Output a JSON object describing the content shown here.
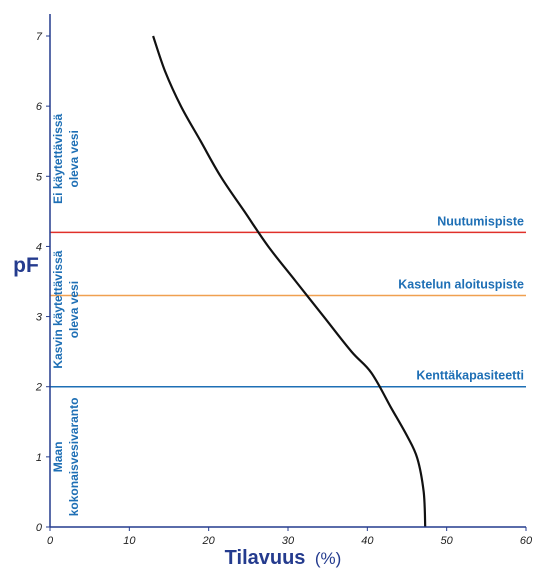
{
  "chart_data": {
    "type": "line",
    "title": "",
    "ylabel": "pF",
    "xlabel": "Tilavuus",
    "xlabel_unit": "(%)",
    "xlim": [
      0,
      60
    ],
    "ylim": [
      0,
      7
    ],
    "x_ticks": [
      "0",
      "10",
      "20",
      "30",
      "40",
      "50",
      "60"
    ],
    "y_ticks": [
      "0",
      "1",
      "2",
      "3",
      "4",
      "5",
      "6",
      "7"
    ],
    "grid": false,
    "series": [
      {
        "x": [
          13,
          14.5,
          16.5,
          19,
          21.5,
          24.5,
          27.5,
          31,
          34.5,
          38,
          40.5,
          43,
          45,
          46.3,
          47.1,
          47.3
        ],
        "y": [
          7.0,
          6.5,
          6.0,
          5.5,
          5.0,
          4.5,
          4.0,
          3.5,
          3.0,
          2.5,
          2.2,
          1.7,
          1.3,
          0.98,
          0.5,
          0.0
        ],
        "color": "#111111"
      }
    ],
    "reference_lines": [
      {
        "y": 4.2,
        "label": "Nuutumispiste",
        "color": "#e0302a",
        "label_color": "#1e6fb5"
      },
      {
        "y": 3.3,
        "label": "Kastelun aloituspiste",
        "color": "#f0a050",
        "label_color": "#1e6fb5"
      },
      {
        "y": 2.0,
        "label": "Kenttäkapasiteetti",
        "color": "#1e6fb5",
        "label_color": "#1e6fb5"
      }
    ],
    "annotations": [
      {
        "lines": [
          "Ei käytettävissä",
          "oleva vesi"
        ],
        "y_range": [
          4.2,
          6.3
        ],
        "color": "#1e6fb5"
      },
      {
        "lines": [
          "Kasvin käytettävissä",
          "oleva vesi"
        ],
        "y_range": [
          2.0,
          4.2
        ],
        "color": "#1e6fb5"
      },
      {
        "lines": [
          "Maan",
          "kokonaisvesivaranto"
        ],
        "y_range": [
          0.0,
          2.0
        ],
        "color": "#1e6fb5"
      }
    ],
    "axis_color": "#243b8e",
    "title_color": "#243b8e"
  }
}
